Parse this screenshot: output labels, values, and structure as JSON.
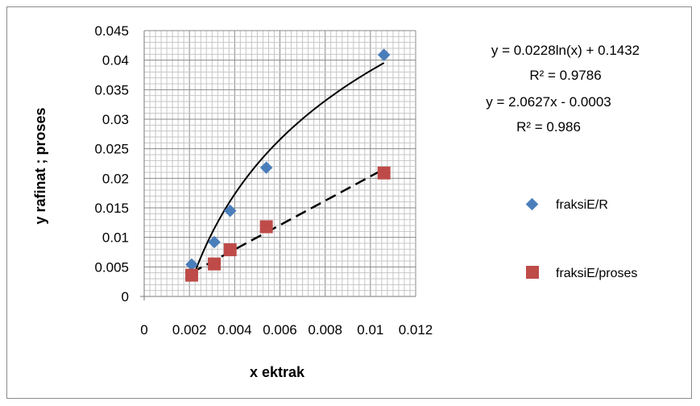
{
  "chart_data": {
    "type": "scatter",
    "xlabel": "x ektrak",
    "ylabel": "y rafinat ; proses",
    "xlim": [
      0,
      0.012
    ],
    "ylim": [
      0,
      0.045
    ],
    "x_ticks": [
      "0",
      "0.002",
      "0.004",
      "0.006",
      "0.008",
      "0.01",
      "0.012"
    ],
    "y_ticks": [
      "0",
      "0.005",
      "0.01",
      "0.015",
      "0.02",
      "0.025",
      "0.03",
      "0.035",
      "0.04",
      "0.045"
    ],
    "grid": true,
    "legend_position": "right",
    "series": [
      {
        "name": "fraksiE/R",
        "marker": "diamond",
        "color": "#4a7ebb",
        "points": [
          [
            0.0021,
            0.0054
          ],
          [
            0.0031,
            0.0092
          ],
          [
            0.0038,
            0.0145
          ],
          [
            0.0054,
            0.0218
          ],
          [
            0.0106,
            0.0409
          ]
        ],
        "trendline": {
          "kind": "log",
          "a": 0.0228,
          "b": 0.1432
        }
      },
      {
        "name": "fraksiE/proses",
        "marker": "square",
        "color": "#be4b48",
        "points": [
          [
            0.0021,
            0.0036
          ],
          [
            0.0031,
            0.0055
          ],
          [
            0.0038,
            0.0079
          ],
          [
            0.0054,
            0.0118
          ],
          [
            0.0106,
            0.0209
          ]
        ],
        "trendline": {
          "kind": "linear",
          "m": 2.0627,
          "c": -0.0003
        }
      }
    ],
    "annotations": [
      "y = 0.0228ln(x) + 0.1432",
      "R² = 0.9786",
      "y = 2.0627x - 0.0003",
      "R² = 0.986"
    ]
  }
}
